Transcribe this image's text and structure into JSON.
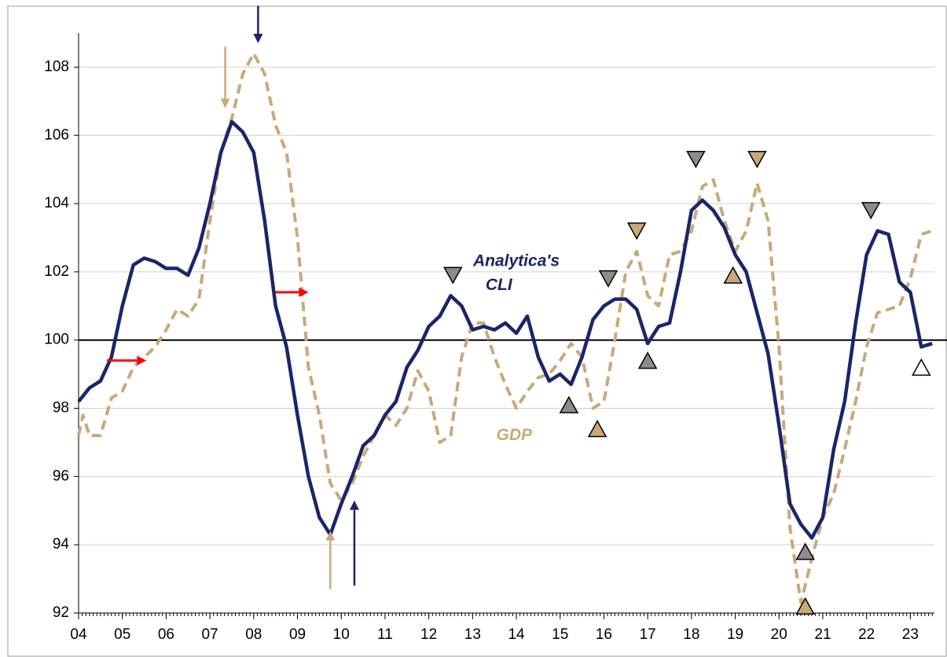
{
  "chart_data": {
    "type": "line",
    "xlim": [
      2004,
      2023.55
    ],
    "ylim": [
      92,
      109
    ],
    "xticks": [
      {
        "value": 2004,
        "label": "04"
      },
      {
        "value": 2005,
        "label": "05"
      },
      {
        "value": 2006,
        "label": "06"
      },
      {
        "value": 2007,
        "label": "07"
      },
      {
        "value": 2008,
        "label": "08"
      },
      {
        "value": 2009,
        "label": "09"
      },
      {
        "value": 2010,
        "label": "10"
      },
      {
        "value": 2011,
        "label": "11"
      },
      {
        "value": 2012,
        "label": "12"
      },
      {
        "value": 2013,
        "label": "13"
      },
      {
        "value": 2014,
        "label": "14"
      },
      {
        "value": 2015,
        "label": "15"
      },
      {
        "value": 2016,
        "label": "16"
      },
      {
        "value": 2017,
        "label": "17"
      },
      {
        "value": 2018,
        "label": "18"
      },
      {
        "value": 2019,
        "label": "19"
      },
      {
        "value": 2020,
        "label": "20"
      },
      {
        "value": 2021,
        "label": "21"
      },
      {
        "value": 2022,
        "label": "22"
      },
      {
        "value": 2023,
        "label": "23"
      }
    ],
    "yticks": [
      92,
      94,
      96,
      98,
      100,
      102,
      104,
      106,
      108
    ],
    "grid": true,
    "reference_line": 100,
    "series": [
      {
        "name": "Analytica's CLI",
        "color": "#1b2569",
        "dash": false,
        "x": [
          2004.0,
          2004.25,
          2004.5,
          2004.75,
          2005.0,
          2005.25,
          2005.5,
          2005.75,
          2006.0,
          2006.25,
          2006.5,
          2006.75,
          2007.0,
          2007.25,
          2007.5,
          2007.75,
          2008.0,
          2008.25,
          2008.5,
          2008.75,
          2009.0,
          2009.25,
          2009.5,
          2009.75,
          2010.0,
          2010.25,
          2010.5,
          2010.75,
          2011.0,
          2011.25,
          2011.5,
          2011.75,
          2012.0,
          2012.25,
          2012.5,
          2012.75,
          2013.0,
          2013.25,
          2013.5,
          2013.75,
          2014.0,
          2014.25,
          2014.5,
          2014.75,
          2015.0,
          2015.25,
          2015.5,
          2015.75,
          2016.0,
          2016.25,
          2016.5,
          2016.75,
          2017.0,
          2017.25,
          2017.5,
          2017.75,
          2018.0,
          2018.25,
          2018.5,
          2018.75,
          2019.0,
          2019.25,
          2019.5,
          2019.75,
          2020.0,
          2020.25,
          2020.5,
          2020.75,
          2021.0,
          2021.25,
          2021.5,
          2021.75,
          2022.0,
          2022.25,
          2022.5,
          2022.75,
          2023.0,
          2023.25,
          2023.5
        ],
        "values": [
          98.2,
          98.6,
          98.8,
          99.5,
          101.0,
          102.2,
          102.4,
          102.3,
          102.1,
          102.1,
          101.9,
          102.7,
          104.0,
          105.5,
          106.4,
          106.1,
          105.5,
          103.5,
          101.0,
          99.8,
          97.8,
          96.0,
          94.8,
          94.3,
          95.2,
          96.0,
          96.9,
          97.2,
          97.8,
          98.2,
          99.2,
          99.7,
          100.4,
          100.7,
          101.3,
          101.0,
          100.3,
          100.4,
          100.3,
          100.5,
          100.2,
          100.7,
          99.5,
          98.8,
          99.0,
          98.7,
          99.5,
          100.6,
          101.0,
          101.2,
          101.2,
          100.9,
          99.9,
          100.4,
          100.5,
          102.0,
          103.8,
          104.1,
          103.8,
          103.3,
          102.5,
          102.0,
          100.8,
          99.6,
          97.5,
          95.2,
          94.6,
          94.2,
          94.8,
          96.8,
          98.2,
          100.5,
          102.5,
          103.2,
          103.1,
          101.7,
          101.4,
          99.8,
          99.9
        ]
      },
      {
        "name": "GDP",
        "color": "#c8a97a",
        "dash": true,
        "x": [
          2004.0,
          2004.1,
          2004.25,
          2004.5,
          2004.75,
          2005.0,
          2005.25,
          2005.5,
          2005.75,
          2006.0,
          2006.25,
          2006.5,
          2006.75,
          2007.0,
          2007.25,
          2007.5,
          2007.75,
          2008.0,
          2008.25,
          2008.5,
          2008.75,
          2009.0,
          2009.25,
          2009.5,
          2009.75,
          2010.0,
          2010.25,
          2010.5,
          2010.75,
          2011.0,
          2011.25,
          2011.5,
          2011.75,
          2012.0,
          2012.25,
          2012.5,
          2012.75,
          2013.0,
          2013.25,
          2013.5,
          2013.75,
          2014.0,
          2014.25,
          2014.5,
          2014.75,
          2015.0,
          2015.25,
          2015.5,
          2015.75,
          2016.0,
          2016.25,
          2016.5,
          2016.75,
          2017.0,
          2017.25,
          2017.5,
          2017.75,
          2018.0,
          2018.25,
          2018.5,
          2018.75,
          2019.0,
          2019.25,
          2019.5,
          2019.75,
          2020.0,
          2020.25,
          2020.5,
          2020.75,
          2021.0,
          2021.25,
          2021.5,
          2021.75,
          2022.0,
          2022.25,
          2022.5,
          2022.75,
          2023.0,
          2023.25,
          2023.5
        ],
        "values": [
          97.2,
          97.8,
          97.2,
          97.2,
          98.3,
          98.5,
          99.2,
          99.5,
          99.8,
          100.3,
          100.9,
          100.7,
          101.2,
          103.5,
          105.5,
          106.5,
          107.8,
          108.4,
          107.8,
          106.3,
          105.5,
          103.0,
          99.2,
          97.8,
          95.8,
          95.3,
          95.8,
          96.6,
          97.2,
          97.8,
          97.5,
          98.0,
          99.1,
          98.5,
          97.0,
          97.2,
          99.5,
          100.5,
          100.5,
          99.5,
          98.7,
          98.0,
          98.5,
          98.9,
          99.0,
          99.4,
          99.9,
          99.5,
          98.0,
          98.2,
          100.0,
          102.0,
          102.6,
          101.3,
          101.0,
          102.5,
          102.6,
          103.2,
          104.5,
          104.7,
          103.5,
          102.6,
          103.2,
          104.6,
          103.5,
          99.8,
          94.5,
          92.3,
          93.6,
          94.8,
          95.5,
          96.8,
          98.2,
          99.8,
          100.8,
          100.9,
          101.0,
          101.8,
          103.1,
          103.2
        ]
      }
    ],
    "turning_points": [
      {
        "x": 2012.55,
        "y": 101.9,
        "direction": "down",
        "color": "#8c8c8c"
      },
      {
        "x": 2015.2,
        "y": 98.1,
        "direction": "up",
        "color": "#8c8c8c"
      },
      {
        "x": 2016.1,
        "y": 101.8,
        "direction": "down",
        "color": "#8c8c8c"
      },
      {
        "x": 2017.0,
        "y": 99.4,
        "direction": "up",
        "color": "#8c8c8c"
      },
      {
        "x": 2018.1,
        "y": 105.3,
        "direction": "down",
        "color": "#8c8c8c"
      },
      {
        "x": 2020.6,
        "y": 93.8,
        "direction": "up",
        "color": "#8c8c8c"
      },
      {
        "x": 2022.1,
        "y": 103.8,
        "direction": "down",
        "color": "#8c8c8c"
      },
      {
        "x": 2023.25,
        "y": 99.2,
        "direction": "up",
        "color": "#ffffff"
      },
      {
        "x": 2015.85,
        "y": 97.4,
        "direction": "up",
        "color": "#c8a97a"
      },
      {
        "x": 2016.75,
        "y": 103.2,
        "direction": "down",
        "color": "#c8a97a"
      },
      {
        "x": 2018.95,
        "y": 101.9,
        "direction": "up",
        "color": "#c8a97a"
      },
      {
        "x": 2019.5,
        "y": 105.3,
        "direction": "down",
        "color": "#c8a97a"
      },
      {
        "x": 2020.6,
        "y": 92.2,
        "direction": "up",
        "color": "#c8a97a"
      }
    ],
    "arrows": [
      {
        "x": [
          2008.1,
          2008.1
        ],
        "y": [
          109.8,
          108.7
        ],
        "color": "#1b2569"
      },
      {
        "x": [
          2007.35,
          2007.35
        ],
        "y": [
          108.6,
          106.8
        ],
        "color": "#c8a97a"
      },
      {
        "x": [
          2009.75,
          2009.75
        ],
        "y": [
          92.7,
          94.4
        ],
        "color": "#c8a97a"
      },
      {
        "x": [
          2010.3,
          2010.3
        ],
        "y": [
          92.8,
          95.3
        ],
        "color": "#1b2569"
      },
      {
        "x": [
          2004.65,
          2005.55
        ],
        "y": [
          99.4,
          99.4
        ],
        "color": "#ff0000"
      },
      {
        "x": [
          2008.5,
          2009.25
        ],
        "y": [
          101.4,
          101.4
        ],
        "color": "#ff0000"
      }
    ],
    "annotations": [
      {
        "text": "Analytica's",
        "x": 2014.0,
        "y": 102.3,
        "color": "#1b2569"
      },
      {
        "text": "CLI",
        "x": 2013.6,
        "y": 101.6,
        "color": "#1b2569"
      },
      {
        "text": "GDP",
        "x": 2013.95,
        "y": 97.2,
        "color": "#c8a97a"
      }
    ]
  }
}
